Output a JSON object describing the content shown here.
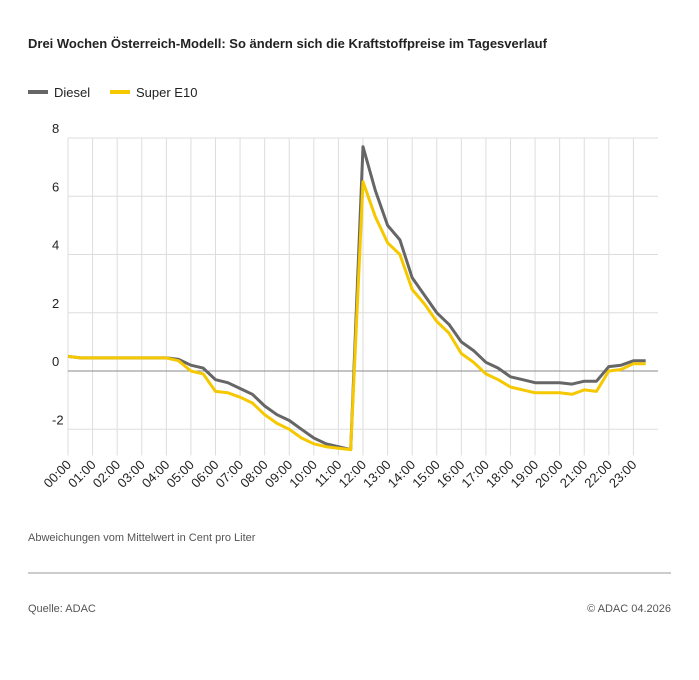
{
  "chart_data": {
    "type": "line",
    "title": "Drei Wochen Österreich-Modell: So ändern sich die Kraftstoffpreise im Tagesverlauf",
    "categories": [
      "00:00",
      null,
      "01:00",
      null,
      "02:00",
      null,
      "03:00",
      null,
      "04:00",
      null,
      "05:00",
      null,
      "06:00",
      null,
      "07:00",
      null,
      "08:00",
      null,
      "09:00",
      null,
      "10:00",
      null,
      "11:00",
      null,
      "12:00",
      null,
      "13:00",
      null,
      "14:00",
      null,
      "15:00",
      null,
      "16:00",
      null,
      "17:00",
      null,
      "18:00",
      null,
      "19:00",
      null,
      "20:00",
      null,
      "21:00",
      null,
      "22:00",
      null,
      "23:00",
      null
    ],
    "series": [
      {
        "name": "Diesel",
        "color": "#666666",
        "values": [
          0.5,
          0.45,
          0.45,
          0.45,
          0.45,
          0.45,
          0.45,
          0.45,
          0.45,
          0.4,
          0.2,
          0.1,
          -0.3,
          -0.4,
          -0.6,
          -0.8,
          -1.2,
          -1.5,
          -1.7,
          -2.0,
          -2.3,
          -2.5,
          -2.6,
          -2.7,
          7.7,
          6.2,
          5.0,
          4.5,
          3.2,
          2.6,
          2.0,
          1.6,
          1.0,
          0.7,
          0.3,
          0.1,
          -0.2,
          -0.3,
          -0.4,
          -0.4,
          -0.4,
          -0.45,
          -0.35,
          -0.35,
          0.15,
          0.2,
          0.35,
          0.35
        ]
      },
      {
        "name": "Super E10",
        "color": "#f5c800",
        "values": [
          0.5,
          0.45,
          0.45,
          0.45,
          0.45,
          0.45,
          0.45,
          0.45,
          0.45,
          0.35,
          0.0,
          -0.1,
          -0.7,
          -0.75,
          -0.9,
          -1.1,
          -1.5,
          -1.8,
          -2.0,
          -2.3,
          -2.5,
          -2.6,
          -2.65,
          -2.7,
          6.5,
          5.3,
          4.4,
          4.0,
          2.8,
          2.3,
          1.7,
          1.3,
          0.6,
          0.3,
          -0.1,
          -0.3,
          -0.55,
          -0.65,
          -0.75,
          -0.75,
          -0.75,
          -0.8,
          -0.65,
          -0.7,
          0.0,
          0.05,
          0.25,
          0.25
        ]
      }
    ],
    "ylim": [
      -2.9,
      8
    ],
    "yticks": [
      -2,
      0,
      2,
      4,
      6,
      8
    ],
    "grid": true,
    "note": "Abweichungen vom Mittelwert in Cent pro Liter",
    "source": "Quelle: ADAC",
    "copyright": "© ADAC 04.2026"
  }
}
